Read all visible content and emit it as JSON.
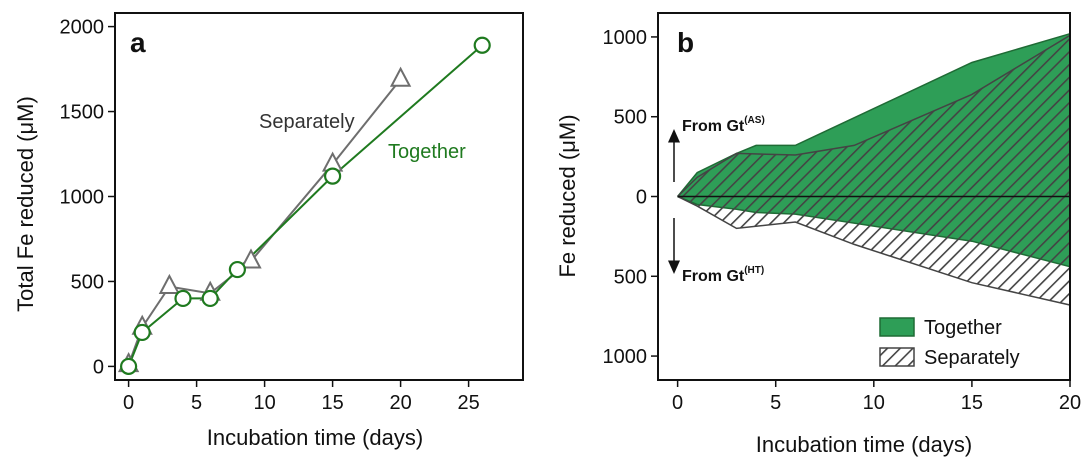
{
  "colors": {
    "together": "#1f7a1f",
    "separately": "#6e6e6e",
    "together_fill": "#2e9e57",
    "together_area": "#2e9e57",
    "hatch": "#444444",
    "axis": "#111111"
  },
  "chart_data": [
    {
      "type": "line",
      "panel_label": "a",
      "xlabel": "Incubation time (days)",
      "ylabel": "Total Fe reduced (μM)",
      "xlim": [
        -1,
        29
      ],
      "ylim": [
        -80,
        2080
      ],
      "xticks": [
        0,
        5,
        10,
        15,
        20,
        25
      ],
      "xtick_labels": [
        "0",
        "5",
        "10",
        "15",
        "20",
        "25"
      ],
      "yticks": [
        0,
        500,
        1000,
        1500,
        2000
      ],
      "ytick_labels": [
        "0",
        "500",
        "1000",
        "1500",
        "2000"
      ],
      "grid": false,
      "series": [
        {
          "name": "Separately",
          "marker": "triangle",
          "x": [
            0,
            1,
            3,
            6,
            9,
            15,
            20
          ],
          "y": [
            10,
            230,
            470,
            430,
            620,
            1190,
            1690
          ]
        },
        {
          "name": "Together",
          "marker": "circle",
          "x": [
            0,
            1,
            4,
            6,
            8,
            15,
            26
          ],
          "y": [
            0,
            200,
            400,
            400,
            570,
            1120,
            1890
          ]
        }
      ]
    },
    {
      "type": "area",
      "panel_label": "b",
      "xlabel": "Incubation time (days)",
      "ylabel": "Fe reduced (μM)",
      "xlim": [
        -1,
        20
      ],
      "ylim": [
        -1150,
        1150
      ],
      "xticks": [
        0,
        5,
        10,
        15,
        20
      ],
      "xtick_labels": [
        "0",
        "5",
        "10",
        "15",
        "20"
      ],
      "yticks": [
        1000,
        500,
        0,
        -500,
        -1000
      ],
      "ytick_labels": [
        "1000",
        "500",
        "0",
        "500",
        "1000"
      ],
      "annotations": {
        "upper": {
          "text": "From Gt",
          "sup": "(AS)"
        },
        "lower": {
          "text": "From Gt",
          "sup": "(HT)"
        }
      },
      "legend_position": "bottom-right",
      "series": [
        {
          "name": "Together",
          "style": "filled",
          "x": [
            0,
            1,
            3,
            4,
            6,
            15,
            20
          ],
          "upper": [
            0,
            150,
            270,
            320,
            320,
            840,
            1020
          ],
          "lower": [
            0,
            -50,
            -80,
            -100,
            -110,
            -280,
            -440
          ]
        },
        {
          "name": "Separately",
          "style": "hatched",
          "x": [
            0,
            1,
            3,
            6,
            9,
            15,
            20
          ],
          "upper": [
            0,
            120,
            270,
            260,
            320,
            640,
            1010
          ],
          "lower": [
            0,
            -60,
            -200,
            -160,
            -300,
            -540,
            -680
          ]
        }
      ]
    }
  ]
}
